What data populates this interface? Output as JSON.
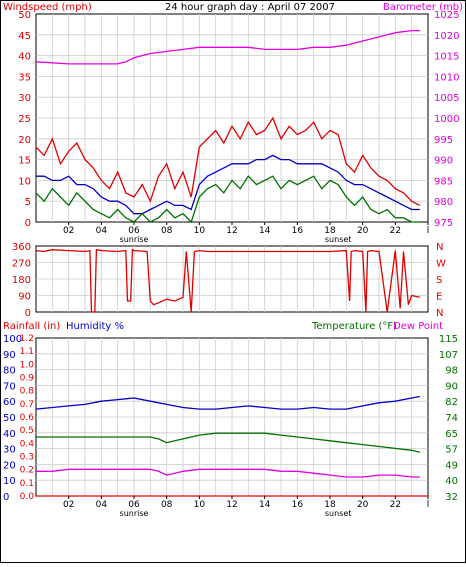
{
  "colors": {
    "red": "#e00000",
    "magenta": "#e000e0",
    "blue": "#0000c8",
    "green": "#007000",
    "grid": "#cccccc",
    "frame": "#000000",
    "title": "#000000"
  },
  "time_ticks": [
    "02",
    "04",
    "06",
    "08",
    "10",
    "12",
    "14",
    "16",
    "18",
    "20",
    "22",
    "l"
  ],
  "sunrise_label": "sunrise",
  "sunset_label": "sunset",
  "chart_data": [
    {
      "type": "line",
      "title": "24 hour graph day : April 07 2007",
      "left_axis_label": "Windspeed (mph)",
      "right_axis_label": "Barometer (mb)",
      "x_range_hours": [
        0,
        24
      ],
      "left_ylim": [
        0,
        50
      ],
      "left_ticks": [
        "0",
        "5",
        "10",
        "15",
        "20",
        "25",
        "30",
        "35",
        "40",
        "45",
        "50"
      ],
      "right_ylim": [
        975,
        1025
      ],
      "right_ticks": [
        "975",
        "980",
        "985",
        "990",
        "995",
        "1000",
        "1005",
        "1010",
        "1015",
        "1020",
        "1025"
      ],
      "grid": true,
      "series": [
        {
          "axis": "right",
          "color_key": "magenta",
          "x": [
            0,
            2,
            3,
            4,
            5,
            5.5,
            6,
            7,
            8,
            9,
            10,
            11,
            12,
            13,
            14,
            15,
            16,
            17,
            18,
            19,
            20,
            21,
            22,
            23,
            23.5
          ],
          "y": [
            1013.5,
            1013,
            1013,
            1013,
            1013,
            1013.5,
            1014.5,
            1015.5,
            1016,
            1016.5,
            1017,
            1017,
            1017,
            1017,
            1016.5,
            1016.5,
            1016.5,
            1017,
            1017,
            1017.5,
            1018.5,
            1019.5,
            1020.5,
            1021,
            1021
          ]
        },
        {
          "axis": "left",
          "color_key": "red",
          "x": [
            0,
            0.5,
            1,
            1.5,
            2,
            2.5,
            3,
            3.5,
            4,
            4.5,
            5,
            5.5,
            6,
            6.5,
            7,
            7.5,
            8,
            8.5,
            9,
            9.5,
            10,
            10.5,
            11,
            11.5,
            12,
            12.5,
            13,
            13.5,
            14,
            14.5,
            15,
            15.5,
            16,
            16.5,
            17,
            17.5,
            18,
            18.5,
            19,
            19.5,
            20,
            20.5,
            21,
            21.5,
            22,
            22.5,
            23,
            23.5
          ],
          "y": [
            18,
            16,
            20,
            14,
            17,
            19,
            15,
            13,
            10,
            8,
            12,
            7,
            6,
            9,
            5,
            11,
            14,
            8,
            12,
            6,
            18,
            20,
            22,
            19,
            23,
            20,
            24,
            21,
            22,
            25,
            20,
            23,
            21,
            22,
            24,
            20,
            22,
            21,
            14,
            12,
            16,
            13,
            11,
            10,
            8,
            7,
            5,
            4
          ]
        },
        {
          "axis": "left",
          "color_key": "blue",
          "x": [
            0,
            0.5,
            1,
            1.5,
            2,
            2.5,
            3,
            3.5,
            4,
            4.5,
            5,
            5.5,
            6,
            6.5,
            7,
            7.5,
            8,
            8.5,
            9,
            9.5,
            10,
            10.5,
            11,
            11.5,
            12,
            12.5,
            13,
            13.5,
            14,
            14.5,
            15,
            15.5,
            16,
            16.5,
            17,
            17.5,
            18,
            18.5,
            19,
            19.5,
            20,
            20.5,
            21,
            21.5,
            22,
            22.5,
            23,
            23.5
          ],
          "y": [
            11,
            11,
            10,
            10,
            11,
            9,
            9,
            8,
            6,
            5,
            5,
            4,
            2,
            2,
            3,
            4,
            5,
            4,
            4,
            3,
            9,
            11,
            12,
            13,
            14,
            14,
            14,
            15,
            15,
            16,
            15,
            15,
            14,
            14,
            14,
            14,
            13,
            12,
            10,
            9,
            9,
            8,
            7,
            6,
            5,
            4,
            3,
            3
          ]
        },
        {
          "axis": "left",
          "color_key": "green",
          "x": [
            0,
            0.5,
            1,
            1.5,
            2,
            2.5,
            3,
            3.5,
            4,
            4.5,
            5,
            5.5,
            6,
            6.5,
            7,
            7.5,
            8,
            8.5,
            9,
            9.5,
            10,
            10.5,
            11,
            11.5,
            12,
            12.5,
            13,
            13.5,
            14,
            14.5,
            15,
            15.5,
            16,
            16.5,
            17,
            17.5,
            18,
            18.5,
            19,
            19.5,
            20,
            20.5,
            21,
            21.5,
            22,
            22.5,
            23,
            23.5
          ],
          "y": [
            7,
            5,
            8,
            6,
            4,
            7,
            5,
            3,
            2,
            1,
            3,
            1,
            0,
            2,
            0,
            1,
            3,
            1,
            2,
            0,
            6,
            8,
            9,
            7,
            10,
            8,
            11,
            9,
            10,
            11,
            8,
            10,
            9,
            10,
            11,
            8,
            10,
            9,
            6,
            4,
            6,
            3,
            2,
            3,
            1,
            1,
            0,
            0
          ]
        }
      ]
    },
    {
      "type": "line",
      "title": "",
      "left_axis_label": "",
      "right_axis_label": "",
      "x_range_hours": [
        0,
        24
      ],
      "left_ylim": [
        0,
        360
      ],
      "left_ticks": [
        "0",
        "90",
        "180",
        "270",
        "360"
      ],
      "right_ticks": [
        "N",
        "E",
        "S",
        "W",
        "N"
      ],
      "grid": true,
      "series": [
        {
          "axis": "left",
          "color_key": "red",
          "x": [
            0,
            0.5,
            1,
            2,
            3,
            3.3,
            3.4,
            3.6,
            3.7,
            4,
            5,
            5.5,
            5.6,
            5.8,
            5.9,
            6,
            6.8,
            7,
            7.2,
            7.5,
            8,
            8.5,
            9,
            9.2,
            9.5,
            9.7,
            10,
            10.5,
            11,
            12,
            13,
            14,
            15,
            16,
            17,
            18,
            19,
            19.2,
            19.3,
            19.5,
            20,
            20.2,
            20.3,
            20.5,
            21,
            21.5,
            22,
            22.3,
            22.5,
            22.8,
            23,
            23.5
          ],
          "y": [
            335,
            330,
            340,
            335,
            330,
            335,
            0,
            0,
            340,
            335,
            330,
            335,
            60,
            60,
            340,
            335,
            330,
            60,
            40,
            50,
            70,
            60,
            80,
            330,
            0,
            330,
            335,
            330,
            330,
            330,
            330,
            330,
            330,
            330,
            330,
            330,
            335,
            60,
            330,
            335,
            330,
            0,
            330,
            335,
            330,
            0,
            335,
            20,
            330,
            40,
            90,
            80
          ]
        }
      ]
    },
    {
      "type": "line",
      "title": "",
      "left_axis_label_1": "Rainfall (in)",
      "left_axis_label_2": "Humidity %",
      "right_axis_label_1": "Temperature (°F)",
      "right_axis_label_2": "Dew Point",
      "x_range_hours": [
        0,
        24
      ],
      "rain_ticks": [
        "0.0",
        "0.1",
        "0.2",
        "0.3",
        "0.4",
        "0.5",
        "0.6",
        "0.7",
        "0.8",
        "0.9",
        "1.0",
        "1.1",
        "1.2"
      ],
      "humidity_ticks": [
        "0",
        "10",
        "20",
        "30",
        "40",
        "50",
        "60",
        "70",
        "80",
        "90",
        "100"
      ],
      "temp_ylim": [
        32,
        115
      ],
      "temp_ticks": [
        "32",
        "40",
        "49",
        "57",
        "65",
        "74",
        "82",
        "90",
        "98",
        "107",
        "115"
      ],
      "grid": true,
      "series": [
        {
          "axis": "humidity",
          "color_key": "blue",
          "x": [
            0,
            1,
            2,
            3,
            4,
            5,
            6,
            7,
            8,
            9,
            10,
            11,
            12,
            13,
            14,
            15,
            16,
            17,
            18,
            19,
            20,
            21,
            22,
            23,
            23.5
          ],
          "y": [
            55,
            56,
            57,
            58,
            60,
            61,
            62,
            60,
            58,
            56,
            55,
            55,
            56,
            57,
            56,
            55,
            55,
            56,
            55,
            55,
            57,
            59,
            60,
            62,
            63
          ]
        },
        {
          "axis": "temp",
          "color_key": "green",
          "x": [
            0,
            1,
            2,
            3,
            4,
            5,
            6,
            7,
            7.5,
            8,
            8.5,
            9,
            10,
            11,
            12,
            13,
            14,
            15,
            16,
            17,
            18,
            19,
            20,
            21,
            22,
            23,
            23.5
          ],
          "y": [
            63,
            63,
            63,
            63,
            63,
            63,
            63,
            63,
            62,
            60,
            61,
            62,
            64,
            65,
            65,
            65,
            65,
            64,
            63,
            62,
            61,
            60,
            59,
            58,
            57,
            56,
            55
          ]
        },
        {
          "axis": "temp",
          "color_key": "magenta",
          "x": [
            0,
            1,
            2,
            3,
            4,
            5,
            6,
            7,
            7.5,
            8,
            8.5,
            9,
            10,
            11,
            12,
            13,
            14,
            15,
            16,
            17,
            18,
            19,
            20,
            21,
            22,
            23,
            23.5
          ],
          "y": [
            45,
            45,
            46,
            46,
            46,
            46,
            46,
            46,
            45,
            43,
            44,
            45,
            46,
            46,
            46,
            46,
            46,
            45,
            45,
            44,
            43,
            42,
            42,
            43,
            43,
            42,
            42
          ]
        },
        {
          "axis": "rain",
          "color_key": "red",
          "x": [
            0,
            24
          ],
          "y": [
            0,
            0
          ]
        }
      ]
    }
  ]
}
